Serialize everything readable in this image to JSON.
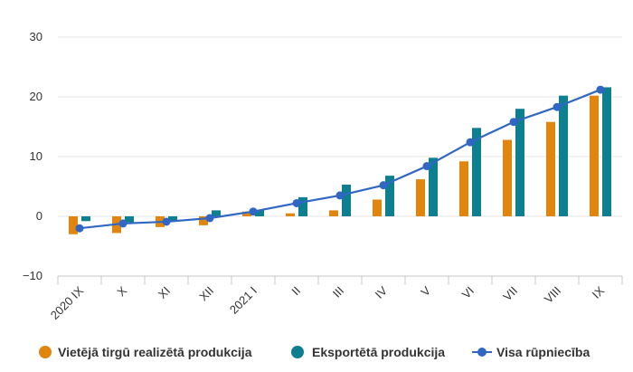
{
  "chart_data": {
    "type": "bar",
    "categories": [
      "2020 IX",
      "X",
      "XI",
      "XII",
      "2021 I",
      "II",
      "III",
      "IV",
      "V",
      "VI",
      "VII",
      "VIII",
      "IX"
    ],
    "series": [
      {
        "name": "Vietējā tirgū realizētā produkcija",
        "type": "bar",
        "color": "#e0860f",
        "values": [
          -3.0,
          -2.8,
          -1.8,
          -1.5,
          0.8,
          0.5,
          1.0,
          2.8,
          6.2,
          9.2,
          12.8,
          15.8,
          20.2
        ]
      },
      {
        "name": "Eksportētā produkcija",
        "type": "bar",
        "color": "#0e7f8f",
        "values": [
          -0.8,
          -1.0,
          -0.8,
          1.0,
          1.0,
          3.2,
          5.3,
          6.8,
          9.8,
          14.8,
          18.0,
          20.2,
          21.6
        ]
      },
      {
        "name": "Visa rūpniecība",
        "type": "line",
        "color": "#3166c4",
        "values": [
          -2.0,
          -1.2,
          -0.9,
          -0.3,
          0.8,
          2.2,
          3.5,
          5.2,
          8.4,
          12.4,
          15.8,
          18.3,
          21.2
        ]
      }
    ],
    "ylim": [
      -10,
      30
    ],
    "yticks": [
      -10,
      0,
      10,
      20,
      30
    ],
    "grid": true,
    "legend_position": "bottom",
    "title": "",
    "xlabel": "",
    "ylabel": ""
  }
}
